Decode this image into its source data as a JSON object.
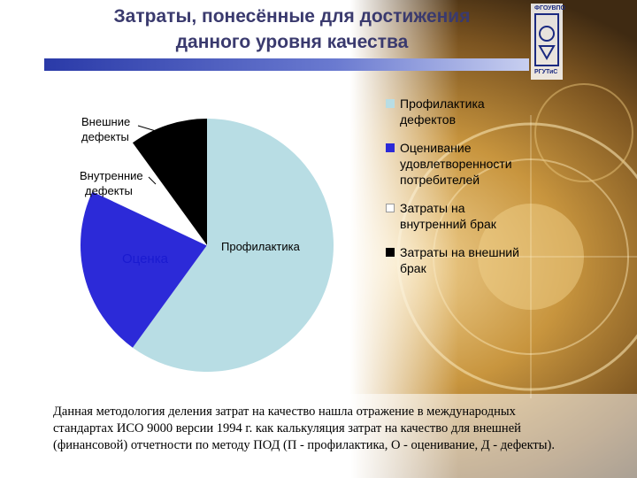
{
  "title": {
    "line1": "Затраты, понесённые для достижения",
    "line2": "данного уровня качества"
  },
  "logo": {
    "top_text": "ФГОУВПО",
    "bottom_text": "РГУТиС"
  },
  "chart_data": {
    "type": "pie",
    "slices": [
      {
        "name": "Профилактика дефектов",
        "label": "Профилактика",
        "value": 60,
        "color": "#b8dde4"
      },
      {
        "name": "Оценивание удовлетворенности потребителей",
        "label": "Оценка",
        "value": 22,
        "color": "#2c2ad8"
      },
      {
        "name": "Затраты на внутренний брак",
        "label": "Внутренние дефекты",
        "value": 8,
        "color": "#ffffff"
      },
      {
        "name": "Затраты на внешний брак",
        "label": "Внешние дефекты",
        "value": 10,
        "color": "#000000"
      }
    ],
    "legend_position": "right"
  },
  "labels": {
    "vneshnie_1": "Внешние",
    "vneshnie_2": "дефекты",
    "vnutr_1": "Внутренние",
    "vnutr_2": "дефекты",
    "ocenka": "Оценка",
    "profil": "Профилактика"
  },
  "legend": [
    {
      "line1": "Профилактика",
      "line2": "дефектов",
      "line3": "",
      "color": "#b8dde4"
    },
    {
      "line1": "Оценивание",
      "line2": "удовлетворенности",
      "line3": "потребителей",
      "color": "#2c2ad8"
    },
    {
      "line1": "Затраты на",
      "line2": "внутренний брак",
      "line3": "",
      "color": "#ffffff"
    },
    {
      "line1": "Затраты на внешний",
      "line2": "брак",
      "line3": "",
      "color": "#000000"
    }
  ],
  "footer": {
    "line1": "Данная методология деления затрат на качество нашла отражение в международных",
    "line2": "стандартах ИСО 9000 версии 1994 г.  как калькуляция затрат на качество для внешней",
    "line3": "(финансовой) отчетности по методу ПОД   (П - профилактика, О - оценивание, Д - дефекты)."
  }
}
